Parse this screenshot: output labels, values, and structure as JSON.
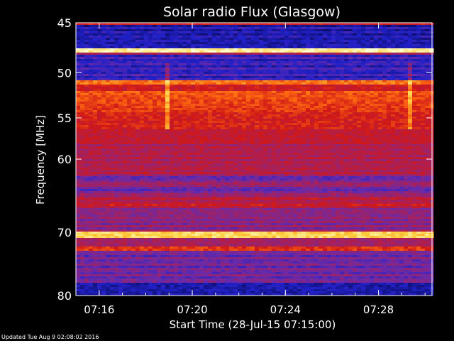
{
  "chart_data": {
    "type": "heatmap",
    "title": "Solar radio Flux (Glasgow)",
    "ylabel": "Frequency [MHz]",
    "xlabel": "Start Time (28-Jul-15 07:15:00)",
    "y_ticks": [
      45,
      50,
      55,
      60,
      70,
      80
    ],
    "x_ticks": [
      "07:16",
      "07:20",
      "07:24",
      "07:28"
    ],
    "ylim": [
      45,
      80
    ],
    "y_scale": "log",
    "x_range_minutes": [
      0,
      15.3
    ],
    "colormap": [
      "#0a0a5a",
      "#2020c8",
      "#6a2aa8",
      "#a8205a",
      "#d01818",
      "#ff6a10",
      "#ffd040",
      "#ffffd0"
    ]
  },
  "footer": {
    "updated": "Updated Tue Aug  9 02:08:02 2016"
  }
}
